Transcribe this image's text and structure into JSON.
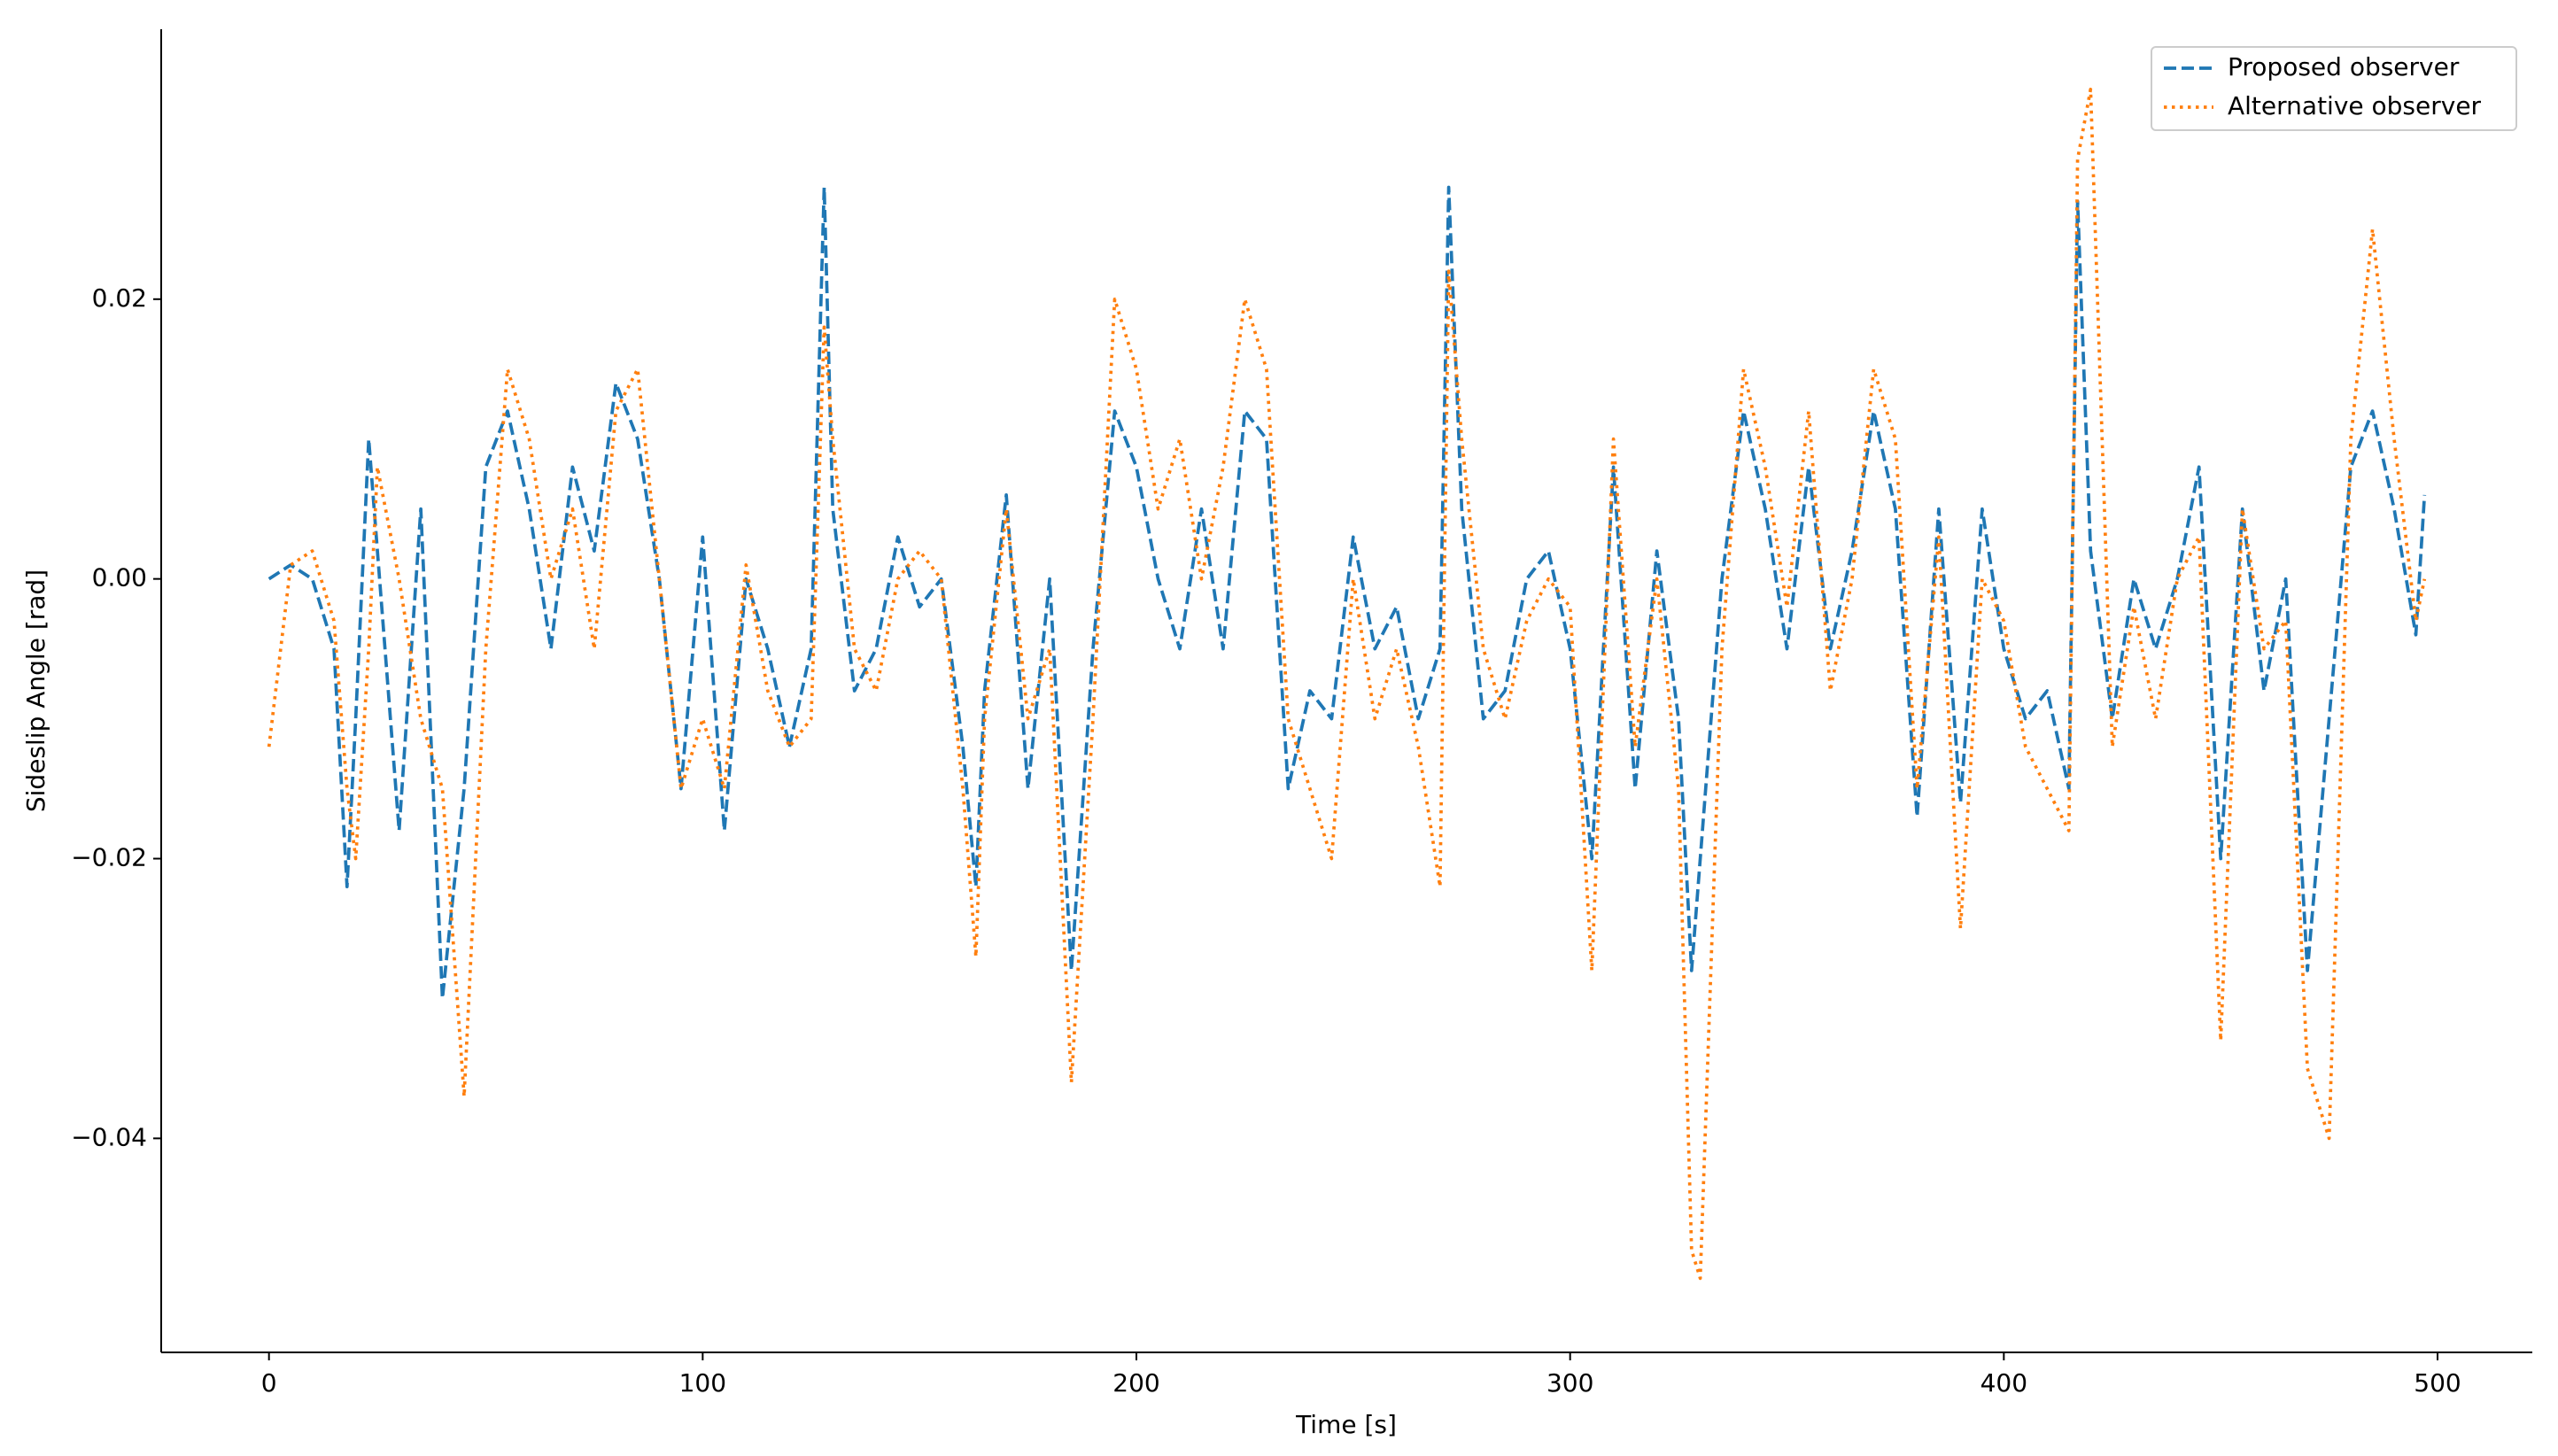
{
  "chart_data": {
    "type": "line",
    "xlabel": "Time [s]",
    "ylabel": "Sideslip Angle [rad]",
    "x": [
      0,
      5,
      10,
      15,
      18,
      20,
      23,
      25,
      30,
      35,
      40,
      45,
      50,
      55,
      60,
      65,
      70,
      75,
      80,
      85,
      90,
      95,
      100,
      105,
      110,
      115,
      120,
      125,
      128,
      130,
      135,
      140,
      145,
      150,
      155,
      160,
      163,
      165,
      170,
      175,
      180,
      185,
      190,
      195,
      200,
      205,
      210,
      215,
      220,
      225,
      230,
      235,
      240,
      245,
      250,
      255,
      260,
      265,
      270,
      272,
      275,
      280,
      285,
      290,
      295,
      300,
      305,
      310,
      315,
      320,
      325,
      328,
      330,
      335,
      340,
      345,
      350,
      355,
      360,
      365,
      370,
      375,
      380,
      385,
      390,
      395,
      400,
      405,
      410,
      415,
      417,
      420,
      425,
      430,
      435,
      440,
      445,
      450,
      455,
      460,
      465,
      470,
      475,
      480,
      485,
      490,
      495,
      497
    ],
    "series": [
      {
        "name": "Proposed observer",
        "color": "#1f77b4",
        "style": "dashed",
        "values": [
          0.0,
          0.001,
          0.0,
          -0.005,
          -0.022,
          -0.01,
          0.01,
          0.002,
          -0.018,
          0.005,
          -0.03,
          -0.015,
          0.008,
          0.012,
          0.005,
          -0.005,
          0.008,
          0.002,
          0.014,
          0.01,
          0.0,
          -0.015,
          0.003,
          -0.018,
          0.0,
          -0.005,
          -0.012,
          -0.005,
          0.028,
          0.005,
          -0.008,
          -0.005,
          0.003,
          -0.002,
          0.0,
          -0.012,
          -0.022,
          -0.008,
          0.006,
          -0.015,
          0.0,
          -0.028,
          -0.005,
          0.012,
          0.008,
          0.0,
          -0.005,
          0.005,
          -0.005,
          0.012,
          0.01,
          -0.015,
          -0.008,
          -0.01,
          0.003,
          -0.005,
          -0.002,
          -0.01,
          -0.005,
          0.028,
          0.005,
          -0.01,
          -0.008,
          0.0,
          0.002,
          -0.005,
          -0.02,
          0.008,
          -0.015,
          0.002,
          -0.01,
          -0.028,
          -0.02,
          0.0,
          0.012,
          0.005,
          -0.005,
          0.008,
          -0.005,
          0.002,
          0.012,
          0.005,
          -0.017,
          0.005,
          -0.016,
          0.005,
          -0.005,
          -0.01,
          -0.008,
          -0.015,
          0.027,
          0.002,
          -0.01,
          0.0,
          -0.005,
          0.0,
          0.008,
          -0.02,
          0.005,
          -0.008,
          0.0,
          -0.028,
          -0.01,
          0.008,
          0.012,
          0.005,
          -0.004,
          0.006
        ]
      },
      {
        "name": "Alternative observer",
        "color": "#ff7f0e",
        "style": "dotted",
        "values": [
          -0.012,
          0.001,
          0.002,
          -0.003,
          -0.015,
          -0.02,
          -0.005,
          0.008,
          0.0,
          -0.01,
          -0.015,
          -0.037,
          -0.005,
          0.015,
          0.01,
          0.0,
          0.005,
          -0.005,
          0.012,
          0.015,
          0.0,
          -0.015,
          -0.01,
          -0.015,
          0.001,
          -0.008,
          -0.012,
          -0.01,
          0.018,
          0.01,
          -0.005,
          -0.008,
          0.0,
          0.002,
          0.0,
          -0.015,
          -0.027,
          -0.01,
          0.005,
          -0.01,
          -0.005,
          -0.036,
          -0.01,
          0.02,
          0.015,
          0.005,
          0.01,
          0.0,
          0.008,
          0.02,
          0.015,
          -0.01,
          -0.015,
          -0.02,
          0.0,
          -0.01,
          -0.005,
          -0.012,
          -0.022,
          0.022,
          0.01,
          -0.005,
          -0.01,
          -0.003,
          0.0,
          -0.002,
          -0.028,
          0.01,
          -0.012,
          0.0,
          -0.015,
          -0.048,
          -0.05,
          -0.005,
          0.015,
          0.008,
          -0.002,
          0.012,
          -0.008,
          0.0,
          0.015,
          0.01,
          -0.015,
          0.003,
          -0.025,
          0.0,
          -0.003,
          -0.012,
          -0.015,
          -0.018,
          0.03,
          0.035,
          -0.012,
          -0.002,
          -0.01,
          0.0,
          0.003,
          -0.033,
          0.005,
          -0.005,
          -0.003,
          -0.035,
          -0.04,
          0.01,
          0.025,
          0.01,
          -0.003,
          0.0
        ]
      }
    ],
    "xlim": [
      -24.85,
      521.85
    ],
    "ylim": [
      -0.0553,
      0.0393
    ],
    "xticks": [
      0,
      100,
      200,
      300,
      400,
      500
    ],
    "yticks": [
      {
        "value": -0.04,
        "label": "−0.04"
      },
      {
        "value": -0.02,
        "label": "−0.02"
      },
      {
        "value": 0,
        "label": "0.00"
      },
      0.02
    ],
    "grid": false,
    "legend": "upper right"
  }
}
